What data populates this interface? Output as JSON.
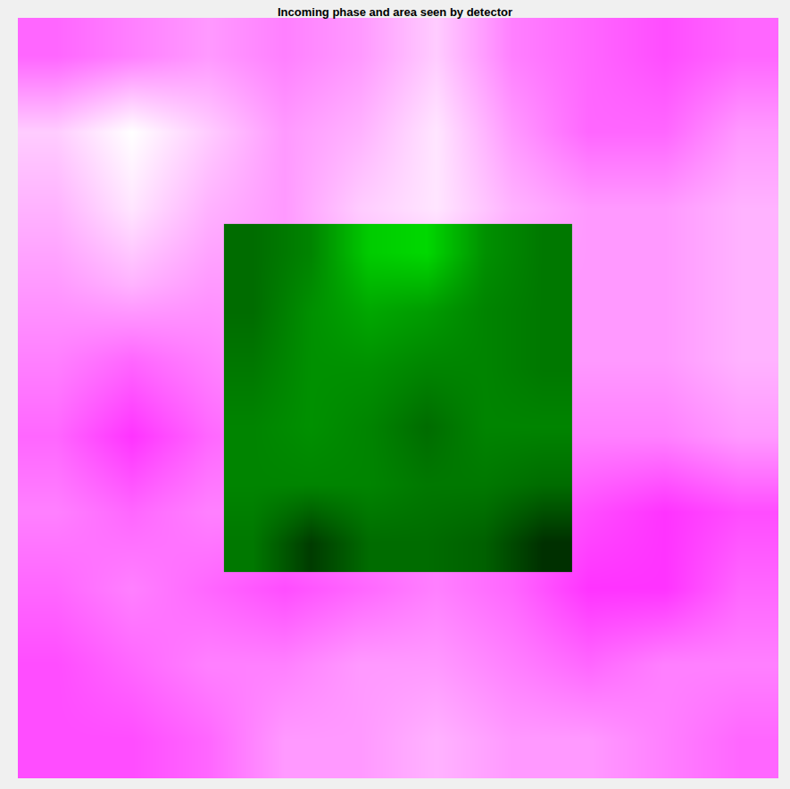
{
  "chart_data": {
    "type": "heatmap",
    "title": "Incoming phase and area seen by detector",
    "tick_labels": false,
    "xlim": [
      0,
      1
    ],
    "ylim": [
      0,
      1
    ],
    "zlim": [
      0,
      1
    ],
    "cells": [
      [
        0.4,
        0.5,
        0.6,
        0.5,
        0.6,
        0.8,
        0.5,
        0.4,
        0.3,
        0.4
      ],
      [
        0.8,
        1.0,
        0.8,
        0.6,
        0.7,
        0.9,
        0.6,
        0.4,
        0.4,
        0.6
      ],
      [
        0.7,
        0.9,
        0.7,
        0.6,
        0.8,
        0.9,
        0.7,
        0.6,
        0.6,
        0.7
      ],
      [
        0.6,
        0.7,
        0.6,
        0.6,
        0.7,
        0.7,
        0.6,
        0.6,
        0.6,
        0.7
      ],
      [
        0.5,
        0.4,
        0.5,
        0.6,
        0.6,
        0.6,
        0.6,
        0.6,
        0.6,
        0.7
      ],
      [
        0.4,
        0.2,
        0.4,
        0.5,
        0.5,
        0.5,
        0.5,
        0.5,
        0.5,
        0.6
      ],
      [
        0.5,
        0.4,
        0.5,
        0.5,
        0.5,
        0.5,
        0.4,
        0.3,
        0.2,
        0.3
      ],
      [
        0.4,
        0.5,
        0.4,
        0.3,
        0.4,
        0.5,
        0.4,
        0.2,
        0.2,
        0.4
      ],
      [
        0.3,
        0.4,
        0.5,
        0.5,
        0.6,
        0.6,
        0.5,
        0.4,
        0.5,
        0.5
      ],
      [
        0.3,
        0.3,
        0.4,
        0.6,
        0.6,
        0.7,
        0.6,
        0.6,
        0.5,
        0.4
      ]
    ],
    "detector": {
      "xlim": [
        0.271,
        0.729
      ],
      "ylim": [
        0.271,
        0.729
      ],
      "zlim": [
        0,
        1
      ],
      "cells": [
        [
          0.45,
          0.55,
          0.85,
          0.9,
          0.6,
          0.5
        ],
        [
          0.45,
          0.6,
          0.7,
          0.65,
          0.55,
          0.5
        ],
        [
          0.5,
          0.6,
          0.6,
          0.55,
          0.55,
          0.5
        ],
        [
          0.55,
          0.6,
          0.55,
          0.45,
          0.55,
          0.55
        ],
        [
          0.55,
          0.55,
          0.55,
          0.5,
          0.5,
          0.45
        ],
        [
          0.5,
          0.25,
          0.45,
          0.45,
          0.4,
          0.2
        ]
      ]
    }
  }
}
